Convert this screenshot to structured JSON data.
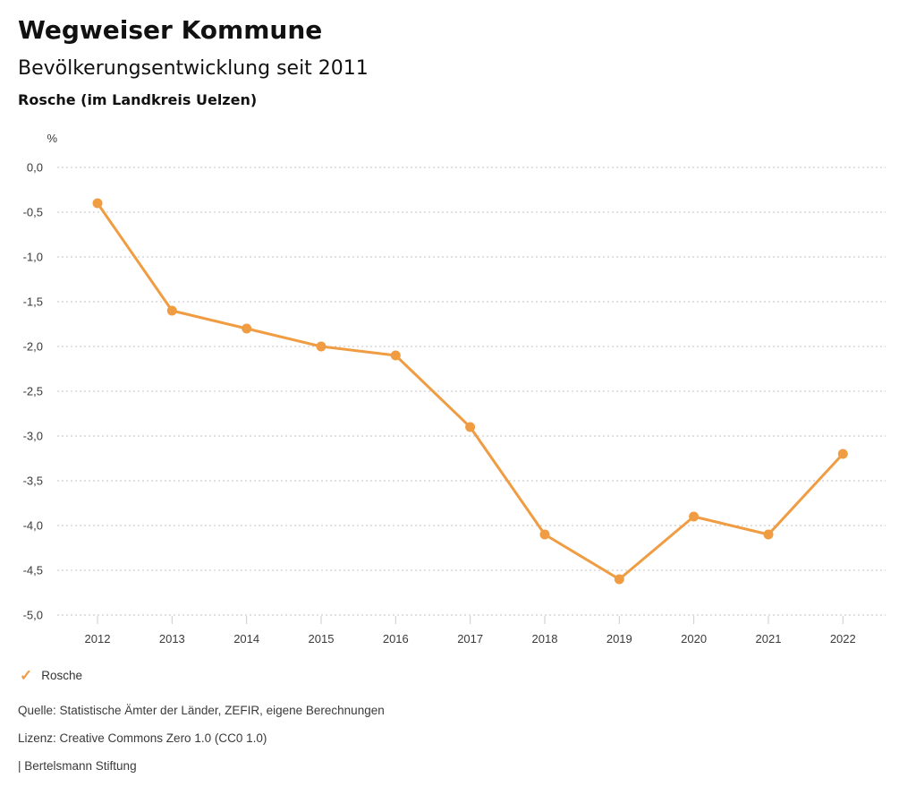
{
  "header": {
    "title": "Wegweiser Kommune",
    "subtitle": "Bevölkerungsentwicklung seit 2011",
    "region": "Rosche (im Landkreis Uelzen)"
  },
  "chart_data": {
    "type": "line",
    "title": "Bevölkerungsentwicklung seit 2011",
    "subtitle": "Rosche (im Landkreis Uelzen)",
    "unit_label": "%",
    "categories": [
      "2012",
      "2013",
      "2014",
      "2015",
      "2016",
      "2017",
      "2018",
      "2019",
      "2020",
      "2021",
      "2022"
    ],
    "series": [
      {
        "name": "Rosche",
        "color": "#F09C42",
        "values": [
          -0.4,
          -1.6,
          -1.8,
          -2.0,
          -2.1,
          -2.9,
          -4.1,
          -4.6,
          -3.9,
          -4.1,
          -3.2
        ]
      }
    ],
    "ylim": [
      -5.0,
      0.0
    ],
    "ytick_step": 0.5,
    "ytick_labels": [
      "0,0",
      "-0,5",
      "-1,0",
      "-1,5",
      "-2,0",
      "-2,5",
      "-3,0",
      "-3,5",
      "-4,0",
      "-4,5",
      "-5,0"
    ],
    "xlabel": "",
    "ylabel": "%",
    "grid": "horizontal-dotted",
    "legend_position": "bottom-left"
  },
  "legend": {
    "items": [
      {
        "label": "Rosche",
        "icon": "check-icon",
        "color": "#F09C42"
      }
    ]
  },
  "footer": {
    "source": "Quelle: Statistische Ämter der Länder, ZEFIR, eigene Berechnungen",
    "license": "Lizenz: Creative Commons Zero 1.0 (CC0 1.0)",
    "attribution": "| Bertelsmann Stiftung"
  },
  "colors": {
    "accent": "#F09C42",
    "grid": "#c3c3c3",
    "tick": "#cccccc",
    "text": "#3a3a3a"
  }
}
